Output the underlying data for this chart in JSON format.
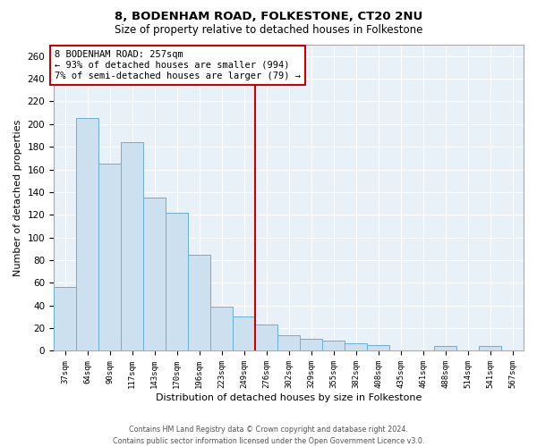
{
  "title": "8, BODENHAM ROAD, FOLKESTONE, CT20 2NU",
  "subtitle": "Size of property relative to detached houses in Folkestone",
  "xlabel": "Distribution of detached houses by size in Folkestone",
  "ylabel": "Number of detached properties",
  "bar_labels": [
    "37sqm",
    "64sqm",
    "90sqm",
    "117sqm",
    "143sqm",
    "170sqm",
    "196sqm",
    "223sqm",
    "249sqm",
    "276sqm",
    "302sqm",
    "329sqm",
    "355sqm",
    "382sqm",
    "408sqm",
    "435sqm",
    "461sqm",
    "488sqm",
    "514sqm",
    "541sqm",
    "567sqm"
  ],
  "bar_values": [
    56,
    205,
    165,
    184,
    135,
    122,
    85,
    39,
    30,
    23,
    14,
    11,
    9,
    7,
    5,
    0,
    0,
    4,
    0,
    4,
    0
  ],
  "bar_color": "#cce0f0",
  "bar_edge_color": "#6aaed6",
  "vline_x": 8.5,
  "vline_color": "#cc0000",
  "annotation_text": "8 BODENHAM ROAD: 257sqm\n← 93% of detached houses are smaller (994)\n7% of semi-detached houses are larger (79) →",
  "annotation_box_color": "#ffffff",
  "annotation_box_edge": "#cc0000",
  "ylim": [
    0,
    270
  ],
  "yticks": [
    0,
    20,
    40,
    60,
    80,
    100,
    120,
    140,
    160,
    180,
    200,
    220,
    240,
    260
  ],
  "footer_text": "Contains HM Land Registry data © Crown copyright and database right 2024.\nContains public sector information licensed under the Open Government Licence v3.0.",
  "background_color": "#ffffff",
  "plot_bg_color": "#e8f0f8",
  "grid_color": "#ffffff"
}
